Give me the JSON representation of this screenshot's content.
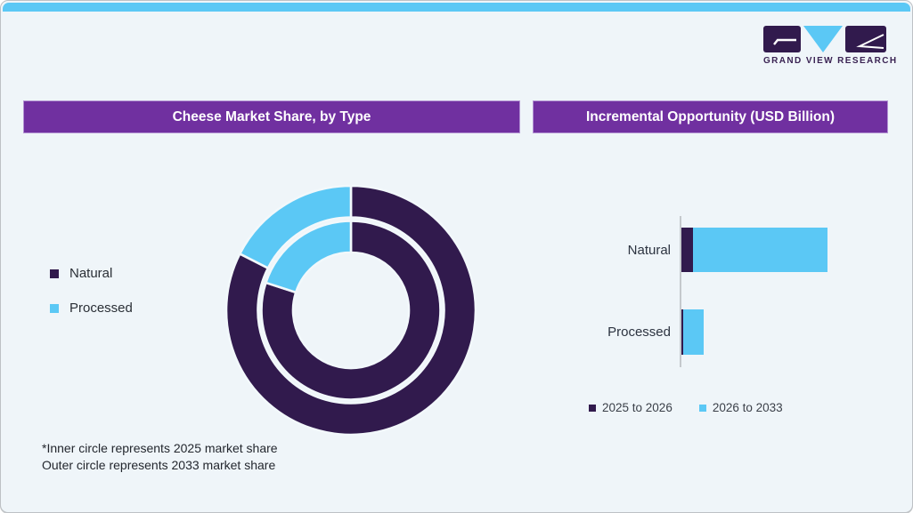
{
  "brand": {
    "name": "GRAND VIEW RESEARCH"
  },
  "colors": {
    "accent_blue": "#5BC8F5",
    "dark_purple": "#311A4D",
    "header_purple": "#7030A0",
    "background": "#EFF5F9",
    "axis_gray": "#C5C9CD",
    "logo_text": "#3A2353"
  },
  "left_panel": {
    "title": "Cheese Market Share, by Type",
    "legend": [
      {
        "label": "Natural",
        "color": "#311A4D"
      },
      {
        "label": "Processed",
        "color": "#5BC8F5"
      }
    ],
    "footnote_line1": "*Inner circle represents 2025 market share",
    "footnote_line2": "Outer circle represents 2033 market share"
  },
  "right_panel": {
    "title": "Incremental Opportunity (USD Billion)",
    "legend": [
      {
        "label": "2025 to 2026",
        "color": "#311A4D"
      },
      {
        "label": "2026 to 2033",
        "color": "#5BC8F5"
      }
    ]
  },
  "chart_data": [
    {
      "type": "pie",
      "variant": "double-ring-donut",
      "title": "Cheese Market Share, by Type",
      "start_angle_deg": 0,
      "direction": "clockwise",
      "legend_position": "left",
      "rings": [
        {
          "name": "inner",
          "represents": "2025 market share",
          "slices": [
            {
              "label": "Natural",
              "pct": 80
            },
            {
              "label": "Processed",
              "pct": 20
            }
          ]
        },
        {
          "name": "outer",
          "represents": "2033 market share",
          "slices": [
            {
              "label": "Natural",
              "pct": 82.5
            },
            {
              "label": "Processed",
              "pct": 17.5
            }
          ]
        }
      ]
    },
    {
      "type": "bar",
      "orientation": "horizontal",
      "stacked": true,
      "title": "Incremental Opportunity (USD Billion)",
      "categories": [
        "Natural",
        "Processed"
      ],
      "series": [
        {
          "name": "2025 to 2026",
          "values_relative": [
            13,
            2
          ]
        },
        {
          "name": "2026 to 2033",
          "values_relative": [
            151,
            23
          ]
        }
      ],
      "value_axis_labels": "none shown; lengths are relative",
      "legend_position": "bottom"
    }
  ]
}
